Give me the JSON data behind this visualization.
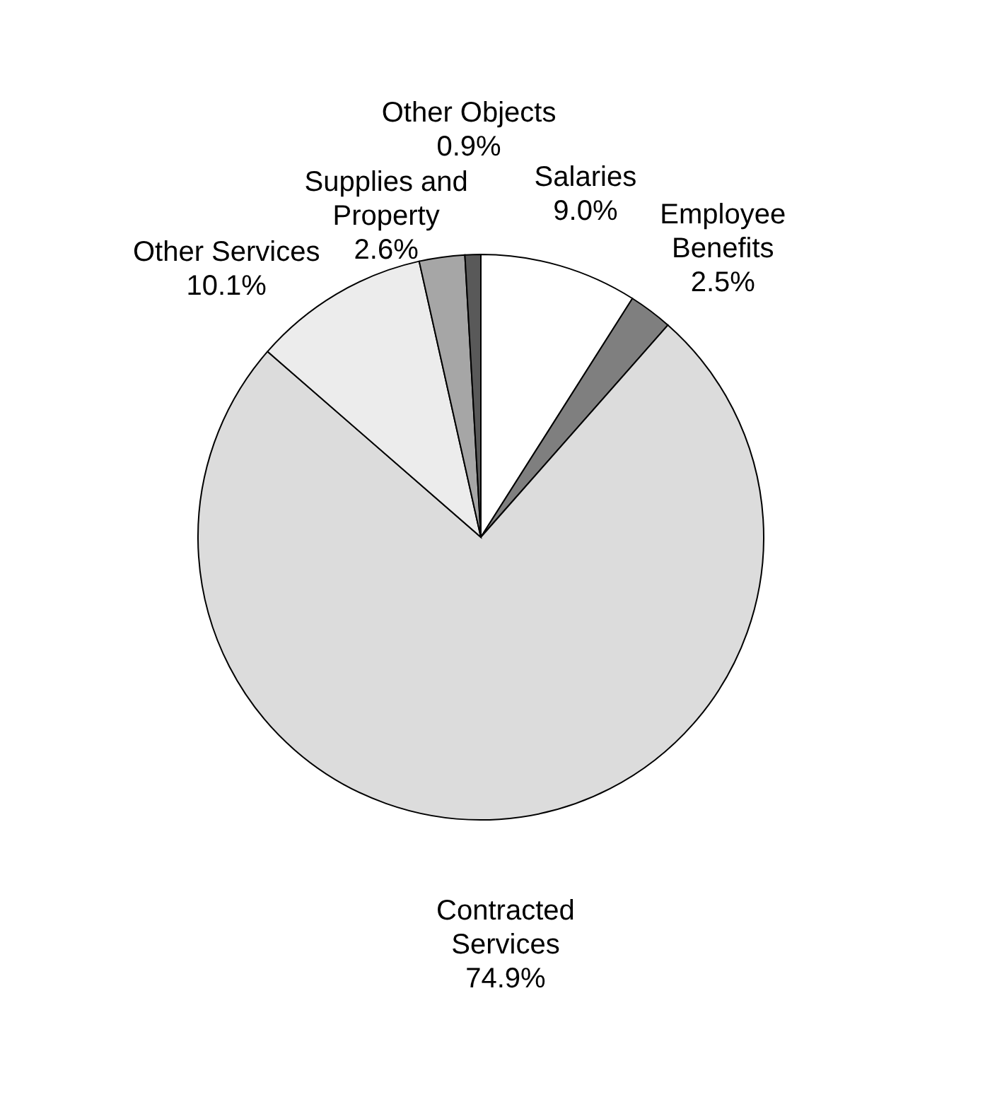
{
  "chart_data": {
    "type": "pie",
    "categories": [
      "Salaries",
      "Employee Benefits",
      "Contracted Services",
      "Other Services",
      "Supplies and Property",
      "Other Objects"
    ],
    "values": [
      9.0,
      2.5,
      74.9,
      10.1,
      2.6,
      0.9
    ],
    "value_labels": [
      "9.0%",
      "2.5%",
      "74.9%",
      "10.1%",
      "2.6%",
      "0.9%"
    ],
    "colors": [
      "#ffffff",
      "#7f7f7f",
      "#dcdcdc",
      "#ececec",
      "#a6a6a6",
      "#595959"
    ]
  }
}
